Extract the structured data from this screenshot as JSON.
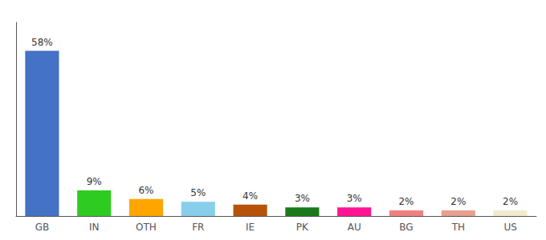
{
  "chart_data": {
    "type": "bar",
    "categories": [
      "GB",
      "IN",
      "OTH",
      "FR",
      "IE",
      "PK",
      "AU",
      "BG",
      "TH",
      "US"
    ],
    "values": [
      58,
      9,
      6,
      5,
      4,
      3,
      3,
      2,
      2,
      2
    ],
    "value_labels": [
      "58%",
      "9%",
      "6%",
      "5%",
      "4%",
      "3%",
      "3%",
      "2%",
      "2%",
      "2%"
    ],
    "colors": [
      "#4472c4",
      "#2ecc20",
      "#ffa500",
      "#87ceeb",
      "#b8520a",
      "#1a7a1a",
      "#ff1493",
      "#f08080",
      "#e8a090",
      "#f0ead0"
    ],
    "ylim": [
      0,
      68
    ],
    "data_labels": true,
    "tick_labels": "x",
    "grid": false
  }
}
